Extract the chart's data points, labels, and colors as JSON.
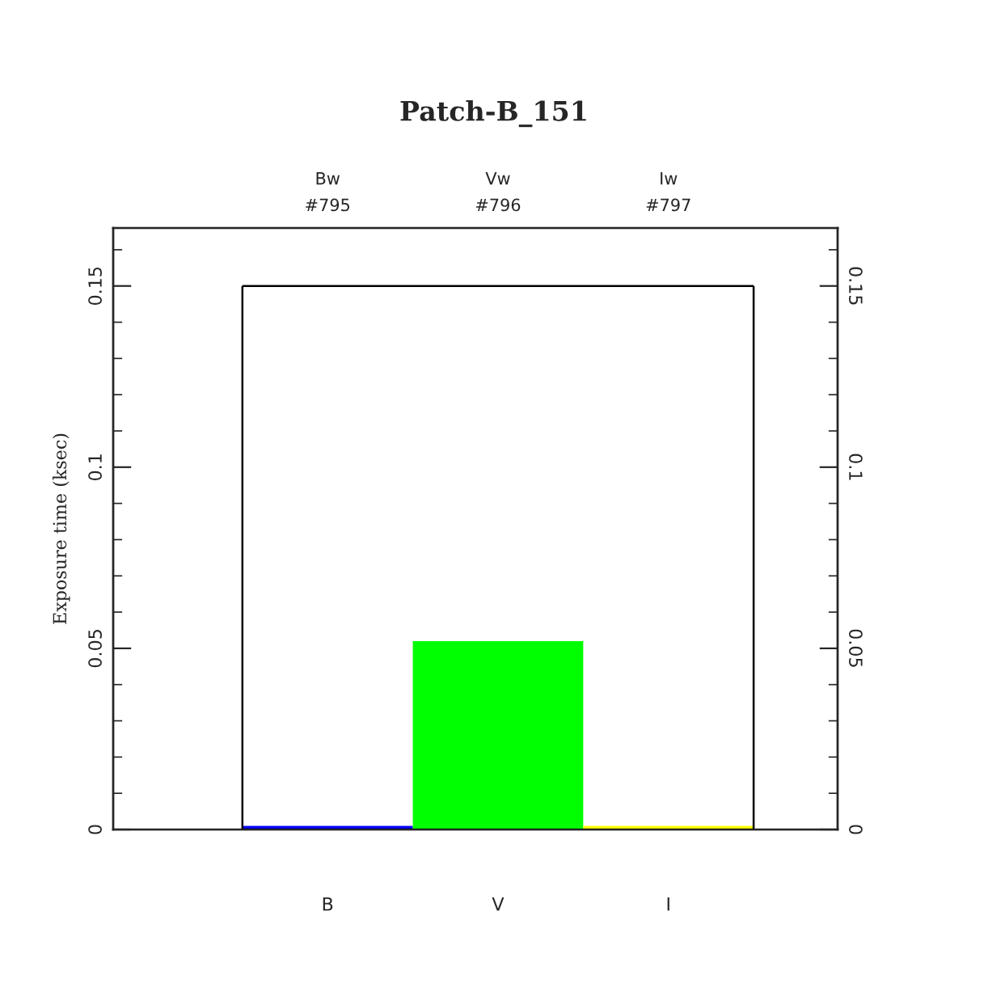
{
  "chart_data": {
    "type": "bar",
    "title": "Patch-B_151",
    "ylabel": "Exposure time (ksec)",
    "categories": [
      "B",
      "V",
      "I"
    ],
    "values": [
      0.001,
      0.052,
      0.001
    ],
    "colors": [
      "#0000ff",
      "#00ff00",
      "#ffff00"
    ],
    "ylim": [
      0,
      0.166
    ],
    "yticks": [
      0,
      0.05,
      0.1,
      0.15
    ],
    "y2lim": [
      0,
      0.166
    ],
    "y2ticks": [
      0,
      0.05,
      0.1,
      0.15
    ],
    "ref_lines": [
      {
        "axis": "y",
        "value": 0.15,
        "color": "#000000"
      }
    ],
    "annotations": [
      "Bw\n#795",
      "Vw\n#796",
      "Iw\n#797"
    ],
    "grid": false,
    "legend": false
  }
}
